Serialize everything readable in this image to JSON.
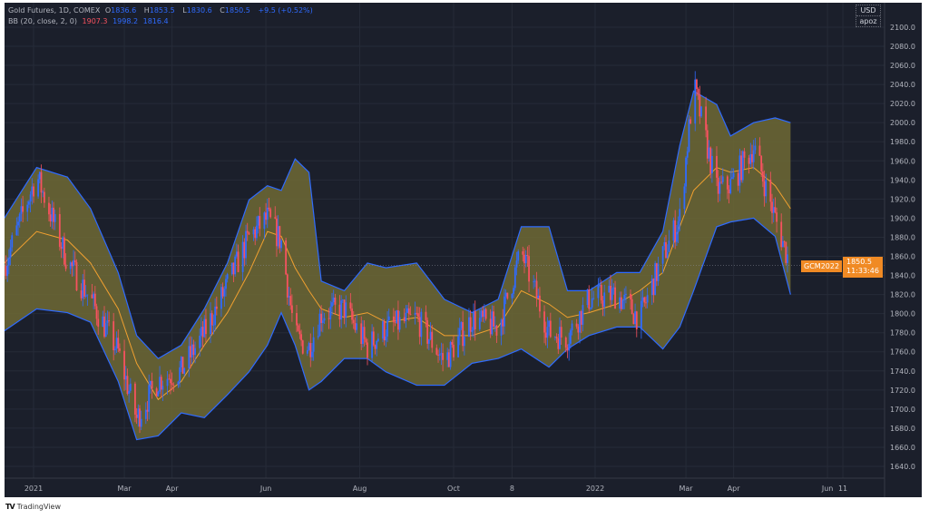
{
  "legend": {
    "symbol": "Gold Futures, 1D, COMEX",
    "o_label": "O",
    "o": "1836.6",
    "h_label": "H",
    "h": "1853.5",
    "l_label": "L",
    "l": "1830.6",
    "c_label": "C",
    "c": "1850.5",
    "change": "+9.5 (+0.52%)",
    "bb_name": "BB (20, close, 2, 0)",
    "bb_basis": "1907.3",
    "bb_upper": "1998.2",
    "bb_lower": "1816.4"
  },
  "currency": {
    "unit": "USD",
    "subtitle": "apoz"
  },
  "price_tag": {
    "symbol": "GCM2022",
    "price": "1850.5",
    "countdown": "11:33:46"
  },
  "branding": "TradingView",
  "colors": {
    "background": "#1b1f2b",
    "band_fill": "#6f6a35",
    "band_line": "#2f6bff",
    "basis": "#f0a030",
    "up": "#2f6bff",
    "down": "#f7525f",
    "tag": "#f08a24"
  },
  "chart_data": {
    "type": "candlestick",
    "title": "Gold Futures, 1D, COMEX",
    "indicator": "Bollinger Bands (20, close, 2, 0)",
    "ylim": [
      1630,
      2105
    ],
    "yticks": [
      1640,
      1660,
      1680,
      1700,
      1720,
      1740,
      1760,
      1780,
      1800,
      1820,
      1840,
      1860,
      1880,
      1900,
      1920,
      1940,
      1960,
      1980,
      2000,
      2020,
      2040,
      2060,
      2080,
      2100
    ],
    "xticks": [
      {
        "date": "2021-01-01",
        "label": "2021"
      },
      {
        "date": "2021-03-01",
        "label": "Mar"
      },
      {
        "date": "2021-04-01",
        "label": "Apr"
      },
      {
        "date": "2021-06-01",
        "label": "Jun"
      },
      {
        "date": "2021-08-01",
        "label": "Aug"
      },
      {
        "date": "2021-10-01",
        "label": "Oct"
      },
      {
        "date": "2021-11-08",
        "label": "8"
      },
      {
        "date": "2022-01-01",
        "label": "2022"
      },
      {
        "date": "2022-03-01",
        "label": "Mar"
      },
      {
        "date": "2022-04-01",
        "label": "Apr"
      },
      {
        "date": "2022-06-01",
        "label": "Jun"
      },
      {
        "date": "2022-06-11",
        "label": "11"
      }
    ],
    "last_price": 1850.5,
    "bands": [
      {
        "date": "2020-12-13",
        "upper": 1900,
        "basis": 1853,
        "lower": 1782,
        "close": 1850
      },
      {
        "date": "2021-01-03",
        "upper": 1953,
        "basis": 1886,
        "lower": 1805,
        "close": 1945
      },
      {
        "date": "2021-01-23",
        "upper": 1943,
        "basis": 1877,
        "lower": 1801,
        "close": 1855
      },
      {
        "date": "2021-02-07",
        "upper": 1910,
        "basis": 1853,
        "lower": 1791,
        "close": 1815
      },
      {
        "date": "2021-02-25",
        "upper": 1843,
        "basis": 1805,
        "lower": 1729,
        "close": 1760
      },
      {
        "date": "2021-03-09",
        "upper": 1777,
        "basis": 1748,
        "lower": 1668,
        "close": 1690
      },
      {
        "date": "2021-03-23",
        "upper": 1753,
        "basis": 1710,
        "lower": 1672,
        "close": 1730
      },
      {
        "date": "2021-04-07",
        "upper": 1767,
        "basis": 1729,
        "lower": 1696,
        "close": 1740
      },
      {
        "date": "2021-04-22",
        "upper": 1805,
        "basis": 1767,
        "lower": 1691,
        "close": 1780
      },
      {
        "date": "2021-05-07",
        "upper": 1853,
        "basis": 1801,
        "lower": 1715,
        "close": 1830
      },
      {
        "date": "2021-05-21",
        "upper": 1919,
        "basis": 1843,
        "lower": 1739,
        "close": 1880
      },
      {
        "date": "2021-06-02",
        "upper": 1934,
        "basis": 1886,
        "lower": 1767,
        "close": 1900
      },
      {
        "date": "2021-06-11",
        "upper": 1929,
        "basis": 1881,
        "lower": 1801,
        "close": 1875
      },
      {
        "date": "2021-06-20",
        "upper": 1962,
        "basis": 1848,
        "lower": 1767,
        "close": 1775
      },
      {
        "date": "2021-06-29",
        "upper": 1948,
        "basis": 1824,
        "lower": 1720,
        "close": 1765
      },
      {
        "date": "2021-07-07",
        "upper": 1834,
        "basis": 1805,
        "lower": 1729,
        "close": 1800
      },
      {
        "date": "2021-07-22",
        "upper": 1824,
        "basis": 1796,
        "lower": 1753,
        "close": 1805
      },
      {
        "date": "2021-08-06",
        "upper": 1853,
        "basis": 1801,
        "lower": 1753,
        "close": 1765
      },
      {
        "date": "2021-08-18",
        "upper": 1848,
        "basis": 1791,
        "lower": 1739,
        "close": 1785
      },
      {
        "date": "2021-09-07",
        "upper": 1853,
        "basis": 1796,
        "lower": 1725,
        "close": 1795
      },
      {
        "date": "2021-09-25",
        "upper": 1815,
        "basis": 1777,
        "lower": 1725,
        "close": 1750
      },
      {
        "date": "2021-10-13",
        "upper": 1801,
        "basis": 1777,
        "lower": 1748,
        "close": 1795
      },
      {
        "date": "2021-10-30",
        "upper": 1815,
        "basis": 1786,
        "lower": 1753,
        "close": 1785
      },
      {
        "date": "2021-11-14",
        "upper": 1891,
        "basis": 1824,
        "lower": 1763,
        "close": 1865
      },
      {
        "date": "2021-12-02",
        "upper": 1891,
        "basis": 1810,
        "lower": 1744,
        "close": 1780
      },
      {
        "date": "2021-12-14",
        "upper": 1824,
        "basis": 1796,
        "lower": 1763,
        "close": 1775
      },
      {
        "date": "2021-12-28",
        "upper": 1824,
        "basis": 1801,
        "lower": 1777,
        "close": 1815
      },
      {
        "date": "2022-01-15",
        "upper": 1843,
        "basis": 1810,
        "lower": 1786,
        "close": 1820
      },
      {
        "date": "2022-01-30",
        "upper": 1843,
        "basis": 1824,
        "lower": 1786,
        "close": 1795
      },
      {
        "date": "2022-02-14",
        "upper": 1886,
        "basis": 1843,
        "lower": 1763,
        "close": 1860
      },
      {
        "date": "2022-02-25",
        "upper": 1976,
        "basis": 1891,
        "lower": 1786,
        "close": 1900
      },
      {
        "date": "2022-03-06",
        "upper": 2033,
        "basis": 1929,
        "lower": 1824,
        "close": 2040
      },
      {
        "date": "2022-03-21",
        "upper": 2019,
        "basis": 1953,
        "lower": 1891,
        "close": 1930
      },
      {
        "date": "2022-03-30",
        "upper": 1986,
        "basis": 1948,
        "lower": 1896,
        "close": 1935
      },
      {
        "date": "2022-04-14",
        "upper": 2000,
        "basis": 1953,
        "lower": 1900,
        "close": 1975
      },
      {
        "date": "2022-04-28",
        "upper": 2005,
        "basis": 1934,
        "lower": 1881,
        "close": 1900
      },
      {
        "date": "2022-05-08",
        "upper": 2000,
        "basis": 1910,
        "lower": 1820,
        "close": 1850
      }
    ]
  }
}
